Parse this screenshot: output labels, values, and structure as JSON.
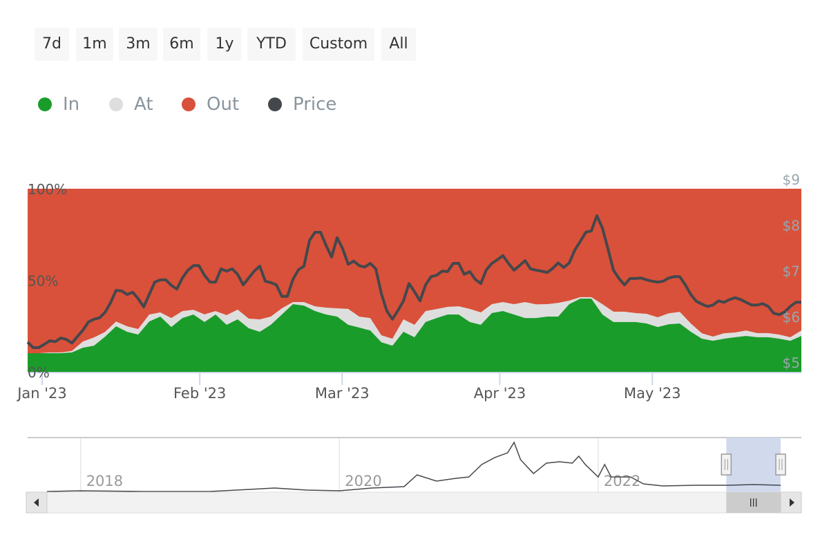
{
  "range_selector": {
    "buttons": [
      "7d",
      "1m",
      "3m",
      "6m",
      "1y",
      "YTD",
      "Custom",
      "All"
    ]
  },
  "legend": [
    {
      "label": "In",
      "color": "#1a9c2a"
    },
    {
      "label": "At",
      "color": "#dedede"
    },
    {
      "label": "Out",
      "color": "#d9513a"
    },
    {
      "label": "Price",
      "color": "#44474c"
    }
  ],
  "chart_data": {
    "type": "area",
    "stacking": "percent",
    "x_unit": "days since 2023-01-01",
    "x_range": [
      -2.85,
      149.3
    ],
    "x_ticks": [
      {
        "label": "Jan '23",
        "day": 0
      },
      {
        "label": "Feb '23",
        "day": 31
      },
      {
        "label": "Mar '23",
        "day": 59
      },
      {
        "label": "Apr '23",
        "day": 90
      },
      {
        "label": "May '23",
        "day": 120
      }
    ],
    "y_left": {
      "range": [
        0,
        100
      ],
      "ticks": [
        "0%",
        "50%",
        "100%"
      ],
      "tick_values": [
        0,
        50,
        100
      ]
    },
    "y_right": {
      "range": [
        5,
        9
      ],
      "ticks": [
        "$5",
        "$6",
        "$7",
        "$8",
        "$9"
      ],
      "tick_values": [
        5,
        6,
        7,
        8,
        9
      ]
    },
    "series": [
      {
        "name": "In",
        "type": "area",
        "color": "#1a9c2a",
        "values": [
          10.2,
          10.2,
          10.2,
          10.2,
          10.6,
          13.2,
          14.3,
          19.2,
          24.9,
          21.9,
          20.4,
          27.5,
          30.2,
          24.5,
          29.4,
          31.3,
          27.2,
          31.3,
          25.7,
          28.7,
          23.8,
          21.9,
          25.7,
          31.3,
          37.0,
          36.2,
          33.2,
          31.3,
          30.2,
          25.7,
          24.2,
          22.6,
          16.2,
          14.3,
          21.9,
          18.9,
          27.2,
          29.4,
          31.3,
          31.3,
          27.2,
          25.7,
          32.1,
          33.2,
          31.3,
          29.4,
          29.4,
          30.2,
          30.2,
          37.0,
          40.0,
          40.0,
          31.3,
          27.2,
          27.2,
          27.2,
          26.4,
          24.5,
          26.0,
          26.4,
          21.9,
          18.1,
          17.0,
          18.1,
          18.9,
          19.6,
          18.9,
          18.9,
          18.1,
          17.0,
          19.6
        ]
      },
      {
        "name": "At",
        "type": "area",
        "color": "#dedede",
        "values": [
          0,
          0,
          0.4,
          0.4,
          0.8,
          3.4,
          4.5,
          2.6,
          2.6,
          3.0,
          3.0,
          3.8,
          2.3,
          4.9,
          3.8,
          2.6,
          4.2,
          1.9,
          5.3,
          5.3,
          5.3,
          6.8,
          4.5,
          3.4,
          1.1,
          1.9,
          2.6,
          3.8,
          4.5,
          8.7,
          6.0,
          6.8,
          3.8,
          3.8,
          6.8,
          6.8,
          6.0,
          4.9,
          4.2,
          4.5,
          7.2,
          6.8,
          4.9,
          4.9,
          5.7,
          8.7,
          7.5,
          6.8,
          7.5,
          1.9,
          0.8,
          0.8,
          5.7,
          5.7,
          5.7,
          4.9,
          5.3,
          5.3,
          6.0,
          6.4,
          4.5,
          3.0,
          2.3,
          3.0,
          2.6,
          3.0,
          2.3,
          2.3,
          2.3,
          1.9,
          3.0
        ]
      },
      {
        "name": "Out",
        "type": "area",
        "color": "#d9513a",
        "note": "remainder to 100%"
      },
      {
        "name": "Price",
        "type": "line",
        "color": "#44474c",
        "axis": "right",
        "values": [
          5.65,
          5.53,
          5.53,
          5.6,
          5.68,
          5.66,
          5.74,
          5.71,
          5.63,
          5.77,
          5.91,
          6.09,
          6.15,
          6.18,
          6.3,
          6.51,
          6.78,
          6.77,
          6.69,
          6.74,
          6.6,
          6.42,
          6.69,
          6.96,
          7.01,
          7.01,
          6.89,
          6.81,
          7.05,
          7.22,
          7.32,
          7.32,
          7.11,
          6.96,
          6.96,
          7.25,
          7.2,
          7.25,
          7.13,
          6.9,
          7.05,
          7.2,
          7.31,
          6.98,
          6.95,
          6.9,
          6.65,
          6.65,
          7.02,
          7.23,
          7.31,
          7.87,
          8.05,
          8.05,
          7.76,
          7.51,
          7.93,
          7.69,
          7.35,
          7.42,
          7.32,
          7.29,
          7.37,
          7.25,
          6.71,
          6.33,
          6.15,
          6.34,
          6.55,
          6.93,
          6.75,
          6.55,
          6.9,
          7.08,
          7.11,
          7.2,
          7.19,
          7.37,
          7.37,
          7.13,
          7.19,
          7.02,
          6.93,
          7.23,
          7.37,
          7.45,
          7.54,
          7.37,
          7.22,
          7.32,
          7.43,
          7.25,
          7.22,
          7.2,
          7.17,
          7.26,
          7.38,
          7.28,
          7.38,
          7.66,
          7.85,
          8.05,
          8.08,
          8.41,
          8.14,
          7.69,
          7.22,
          7.04,
          6.9,
          7.04,
          7.04,
          7.05,
          7.01,
          6.98,
          6.96,
          6.98,
          7.05,
          7.08,
          7.08,
          6.9,
          6.69,
          6.54,
          6.48,
          6.43,
          6.46,
          6.55,
          6.52,
          6.58,
          6.62,
          6.58,
          6.52,
          6.46,
          6.46,
          6.49,
          6.43,
          6.28,
          6.25,
          6.31,
          6.43,
          6.52,
          6.52
        ]
      }
    ],
    "navigator": {
      "x_unit": "year",
      "x_range": [
        2017.74,
        2023.41
      ],
      "selected_range": [
        2022.99,
        2023.41
      ],
      "ticks": [
        {
          "label": "2018",
          "year": 2018
        },
        {
          "label": "2020",
          "year": 2020
        },
        {
          "label": "2022",
          "year": 2022
        }
      ],
      "series": {
        "name": "Price",
        "points": [
          [
            2017.74,
            0.65
          ],
          [
            2018.0,
            1.3
          ],
          [
            2018.5,
            0.65
          ],
          [
            2019.0,
            0.65
          ],
          [
            2019.5,
            3.9
          ],
          [
            2019.75,
            1.95
          ],
          [
            2020.0,
            1.3
          ],
          [
            2020.25,
            3.9
          ],
          [
            2020.5,
            5.2
          ],
          [
            2020.6,
            16.25
          ],
          [
            2020.75,
            10.4
          ],
          [
            2020.9,
            13
          ],
          [
            2021.0,
            14.3
          ],
          [
            2021.1,
            26
          ],
          [
            2021.2,
            32.5
          ],
          [
            2021.3,
            37
          ],
          [
            2021.35,
            46.8
          ],
          [
            2021.4,
            30.5
          ],
          [
            2021.5,
            17.5
          ],
          [
            2021.6,
            27.3
          ],
          [
            2021.7,
            28.6
          ],
          [
            2021.8,
            27.3
          ],
          [
            2021.85,
            33.8
          ],
          [
            2021.9,
            26
          ],
          [
            2022.0,
            14.3
          ],
          [
            2022.05,
            26
          ],
          [
            2022.1,
            14.3
          ],
          [
            2022.25,
            14.3
          ],
          [
            2022.35,
            7.8
          ],
          [
            2022.5,
            5.85
          ],
          [
            2022.75,
            6.5
          ],
          [
            2023.0,
            6.5
          ],
          [
            2023.2,
            7.15
          ],
          [
            2023.41,
            6.5
          ]
        ]
      }
    }
  }
}
